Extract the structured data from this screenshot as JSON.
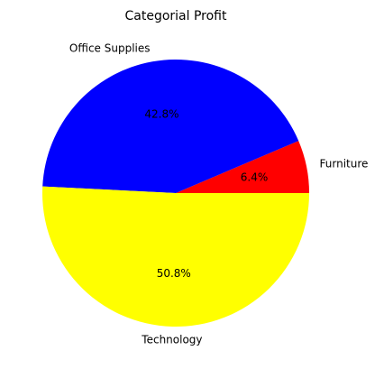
{
  "chart_data": {
    "type": "pie",
    "title": "Categorial Profit",
    "slices": [
      {
        "label": "Furniture",
        "value": 6.4,
        "pct_label": "6.4%",
        "color": "#ff0000"
      },
      {
        "label": "Office Supplies",
        "value": 42.8,
        "pct_label": "42.8%",
        "color": "#0000ff"
      },
      {
        "label": "Technology",
        "value": 50.8,
        "pct_label": "50.8%",
        "color": "#ffff00"
      }
    ],
    "start_angle_deg": 0,
    "direction": "counterclockwise",
    "legend": "none"
  }
}
